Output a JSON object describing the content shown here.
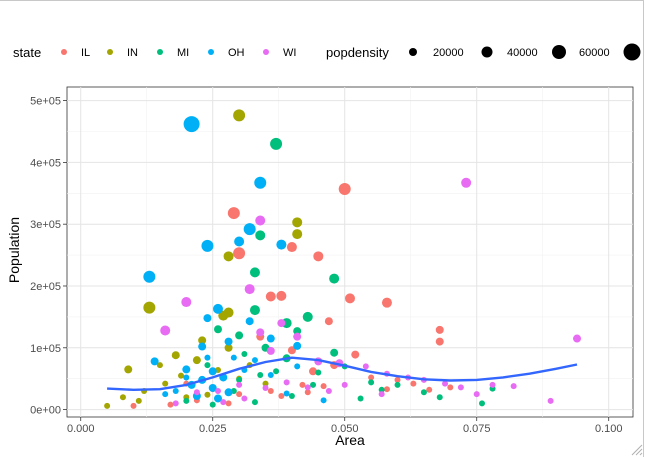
{
  "chart_data": {
    "type": "scatter",
    "title": "",
    "xlabel": "Area",
    "ylabel": "Population",
    "xlim": [
      -0.0026,
      0.1046
    ],
    "ylim": [
      -12000,
      522000
    ],
    "x_ticks": [
      0,
      0.025,
      0.05,
      0.075,
      0.1
    ],
    "x_tick_labels": [
      "0.000",
      "0.025",
      "0.050",
      "0.075",
      "0.100"
    ],
    "y_ticks": [
      0,
      100000,
      200000,
      300000,
      400000,
      500000
    ],
    "y_tick_labels": [
      "0e+00",
      "1e+05",
      "2e+05",
      "3e+05",
      "4e+05",
      "5e+05"
    ],
    "grid": true,
    "legend_position": "top",
    "color_legend": {
      "title": "state",
      "entries": [
        {
          "label": "IL",
          "color": "#F8766D"
        },
        {
          "label": "IN",
          "color": "#A3A500"
        },
        {
          "label": "MI",
          "color": "#00BF7D"
        },
        {
          "label": "OH",
          "color": "#00B0F6"
        },
        {
          "label": "WI",
          "color": "#E76BF3"
        }
      ]
    },
    "size_legend": {
      "title": "popdensity",
      "entries": [
        {
          "label": "20000",
          "value": 20000
        },
        {
          "label": "40000",
          "value": 40000
        },
        {
          "label": "60000",
          "value": 60000
        },
        {
          "label": "",
          "value": 80000
        }
      ]
    },
    "smooth_line": {
      "color": "#3366FF",
      "x": [
        0.005,
        0.01,
        0.015,
        0.02,
        0.025,
        0.03,
        0.035,
        0.04,
        0.045,
        0.05,
        0.055,
        0.06,
        0.065,
        0.07,
        0.075,
        0.08,
        0.085,
        0.09,
        0.094
      ],
      "y": [
        34000,
        32000,
        33000,
        40000,
        52000,
        66000,
        77000,
        84000,
        80000,
        71000,
        61000,
        54000,
        49000,
        47000,
        48000,
        52000,
        58000,
        66000,
        73000
      ]
    },
    "series": [
      {
        "name": "IL",
        "points": [
          [
            0.05,
            357000,
            6
          ],
          [
            0.029,
            318000,
            6
          ],
          [
            0.03,
            253000,
            6
          ],
          [
            0.04,
            263000,
            5
          ],
          [
            0.045,
            248000,
            5
          ],
          [
            0.038,
            184000,
            5
          ],
          [
            0.036,
            183000,
            5
          ],
          [
            0.051,
            180000,
            5
          ],
          [
            0.058,
            173000,
            5
          ],
          [
            0.047,
            143000,
            4
          ],
          [
            0.034,
            118000,
            4
          ],
          [
            0.04,
            96000,
            4
          ],
          [
            0.068,
            129000,
            4
          ],
          [
            0.068,
            110000,
            4
          ],
          [
            0.052,
            89000,
            4
          ],
          [
            0.048,
            72000,
            4
          ],
          [
            0.044,
            62000,
            4
          ],
          [
            0.055,
            52000,
            3
          ],
          [
            0.06,
            48000,
            3
          ],
          [
            0.063,
            42000,
            3
          ],
          [
            0.042,
            40000,
            3
          ],
          [
            0.046,
            38000,
            3
          ],
          [
            0.058,
            33000,
            3
          ],
          [
            0.07,
            36000,
            3
          ],
          [
            0.036,
            30000,
            3
          ],
          [
            0.03,
            25000,
            3
          ],
          [
            0.038,
            22000,
            3
          ],
          [
            0.022,
            15000,
            3
          ],
          [
            0.028,
            10000,
            3
          ],
          [
            0.017,
            8000,
            3
          ],
          [
            0.01,
            6000,
            3
          ],
          [
            0.043,
            28000,
            3
          ],
          [
            0.066,
            32000,
            3
          ],
          [
            0.025,
            33000,
            3
          ],
          [
            0.02,
            42000,
            3
          ]
        ]
      },
      {
        "name": "IN",
        "points": [
          [
            0.03,
            476000,
            6
          ],
          [
            0.041,
            303000,
            5
          ],
          [
            0.041,
            284000,
            5
          ],
          [
            0.028,
            248000,
            5
          ],
          [
            0.013,
            165000,
            6
          ],
          [
            0.028,
            157000,
            5
          ],
          [
            0.027,
            152000,
            5
          ],
          [
            0.023,
            112000,
            4
          ],
          [
            0.018,
            88000,
            4
          ],
          [
            0.009,
            65000,
            4
          ],
          [
            0.022,
            80000,
            4
          ],
          [
            0.028,
            100000,
            4
          ],
          [
            0.032,
            72000,
            3
          ],
          [
            0.015,
            72000,
            3
          ],
          [
            0.019,
            55000,
            3
          ],
          [
            0.016,
            42000,
            3
          ],
          [
            0.012,
            30000,
            3
          ],
          [
            0.008,
            20000,
            3
          ],
          [
            0.005,
            6000,
            3
          ],
          [
            0.011,
            14000,
            3
          ],
          [
            0.024,
            24000,
            3
          ],
          [
            0.03,
            50000,
            3
          ],
          [
            0.035,
            42000,
            3
          ],
          [
            0.026,
            64000,
            3
          ],
          [
            0.02,
            20000,
            3
          ]
        ]
      },
      {
        "name": "MI",
        "points": [
          [
            0.037,
            430000,
            6
          ],
          [
            0.034,
            282000,
            5
          ],
          [
            0.033,
            222000,
            5
          ],
          [
            0.048,
            212000,
            5
          ],
          [
            0.033,
            161000,
            5
          ],
          [
            0.039,
            140000,
            5
          ],
          [
            0.043,
            150000,
            5
          ],
          [
            0.026,
            130000,
            4
          ],
          [
            0.03,
            120000,
            4
          ],
          [
            0.041,
            127000,
            4
          ],
          [
            0.035,
            100000,
            4
          ],
          [
            0.039,
            83000,
            4
          ],
          [
            0.048,
            92000,
            4
          ],
          [
            0.05,
            70000,
            3
          ],
          [
            0.045,
            60000,
            3
          ],
          [
            0.034,
            56000,
            3
          ],
          [
            0.03,
            48000,
            3
          ],
          [
            0.055,
            44000,
            3
          ],
          [
            0.06,
            40000,
            3
          ],
          [
            0.065,
            28000,
            3
          ],
          [
            0.068,
            20000,
            3
          ],
          [
            0.078,
            34000,
            3
          ],
          [
            0.076,
            10000,
            3
          ],
          [
            0.053,
            18000,
            3
          ],
          [
            0.04,
            22000,
            3
          ],
          [
            0.033,
            12000,
            3
          ],
          [
            0.025,
            8000,
            3
          ],
          [
            0.02,
            14000,
            3
          ],
          [
            0.029,
            30000,
            3
          ],
          [
            0.037,
            62000,
            3
          ],
          [
            0.044,
            40000,
            3
          ],
          [
            0.057,
            32000,
            3
          ],
          [
            0.031,
            90000,
            3
          ],
          [
            0.024,
            72000,
            3
          ]
        ]
      },
      {
        "name": "OH",
        "points": [
          [
            0.021,
            462000,
            8
          ],
          [
            0.034,
            367000,
            6
          ],
          [
            0.032,
            292000,
            6
          ],
          [
            0.038,
            267000,
            5
          ],
          [
            0.024,
            265000,
            6
          ],
          [
            0.013,
            215000,
            6
          ],
          [
            0.03,
            272000,
            5
          ],
          [
            0.026,
            163000,
            5
          ],
          [
            0.024,
            148000,
            4
          ],
          [
            0.032,
            143000,
            4
          ],
          [
            0.041,
            103000,
            4
          ],
          [
            0.036,
            115000,
            4
          ],
          [
            0.028,
            110000,
            4
          ],
          [
            0.023,
            102000,
            4
          ],
          [
            0.014,
            78000,
            4
          ],
          [
            0.02,
            65000,
            4
          ],
          [
            0.025,
            62000,
            4
          ],
          [
            0.027,
            52000,
            4
          ],
          [
            0.023,
            48000,
            4
          ],
          [
            0.021,
            40000,
            4
          ],
          [
            0.025,
            35000,
            4
          ],
          [
            0.028,
            28000,
            4
          ],
          [
            0.022,
            22000,
            4
          ],
          [
            0.026,
            18000,
            4
          ],
          [
            0.031,
            64000,
            3
          ],
          [
            0.033,
            80000,
            3
          ],
          [
            0.029,
            84000,
            3
          ],
          [
            0.036,
            56000,
            3
          ],
          [
            0.018,
            30000,
            3
          ],
          [
            0.016,
            25000,
            3
          ],
          [
            0.041,
            70000,
            3
          ],
          [
            0.039,
            26000,
            3
          ],
          [
            0.046,
            15000,
            3
          ],
          [
            0.024,
            84000,
            3
          ],
          [
            0.02,
            52000,
            3
          ]
        ]
      },
      {
        "name": "WI",
        "points": [
          [
            0.073,
            367000,
            5
          ],
          [
            0.034,
            306000,
            5
          ],
          [
            0.032,
            195000,
            5
          ],
          [
            0.02,
            174000,
            5
          ],
          [
            0.016,
            128000,
            5
          ],
          [
            0.034,
            125000,
            4
          ],
          [
            0.038,
            140000,
            4
          ],
          [
            0.041,
            118000,
            4
          ],
          [
            0.094,
            115000,
            4
          ],
          [
            0.036,
            95000,
            4
          ],
          [
            0.045,
            78000,
            4
          ],
          [
            0.049,
            75000,
            4
          ],
          [
            0.054,
            70000,
            3
          ],
          [
            0.058,
            58000,
            3
          ],
          [
            0.062,
            52000,
            3
          ],
          [
            0.065,
            48000,
            3
          ],
          [
            0.069,
            42000,
            3
          ],
          [
            0.072,
            36000,
            3
          ],
          [
            0.078,
            40000,
            3
          ],
          [
            0.082,
            38000,
            3
          ],
          [
            0.05,
            40000,
            3
          ],
          [
            0.047,
            30000,
            3
          ],
          [
            0.043,
            36000,
            3
          ],
          [
            0.039,
            44000,
            3
          ],
          [
            0.035,
            35000,
            3
          ],
          [
            0.03,
            40000,
            3
          ],
          [
            0.026,
            30000,
            3
          ],
          [
            0.022,
            28000,
            3
          ],
          [
            0.031,
            18000,
            3
          ],
          [
            0.027,
            12000,
            3
          ],
          [
            0.018,
            10000,
            3
          ],
          [
            0.089,
            14000,
            3
          ],
          [
            0.075,
            25000,
            3
          ],
          [
            0.057,
            25000,
            3
          ]
        ]
      }
    ]
  }
}
